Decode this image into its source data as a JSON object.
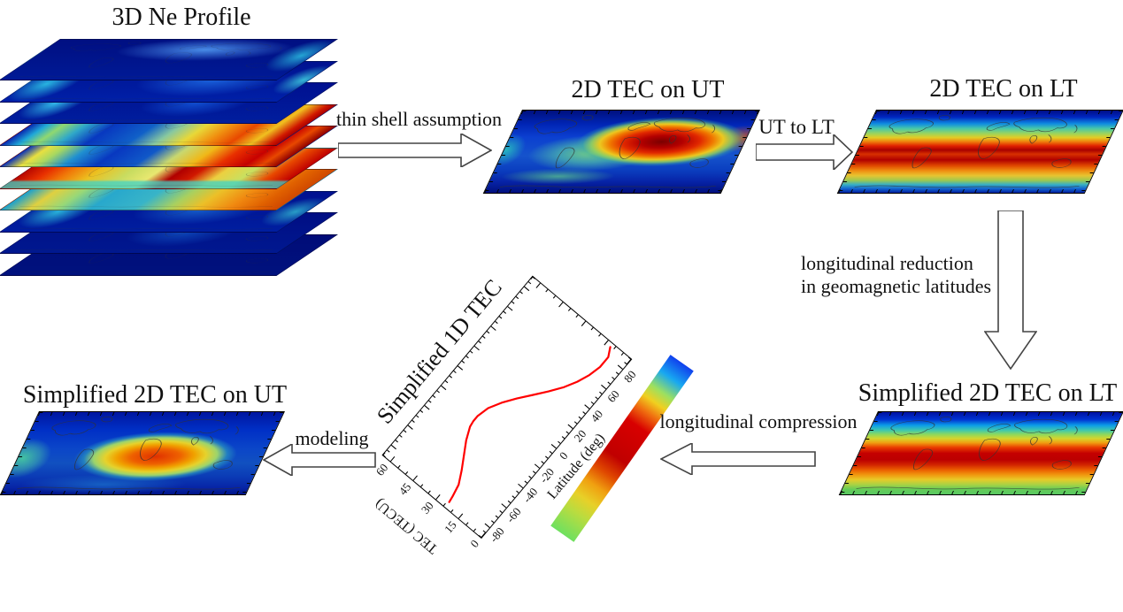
{
  "stack": {
    "title": "3D Ne Profile",
    "layer_count": 10
  },
  "flow": {
    "thin_shell_label": "thin shell assumption",
    "ut_to_lt_label": "UT to LT",
    "reduction_label_line1": "longitudinal reduction",
    "reduction_label_line2": "in geomagnetic latitudes",
    "compression_label": "longitudinal compression",
    "modeling_label": "modeling"
  },
  "maps": {
    "tec_ut_title": "2D TEC on UT",
    "tec_lt_title": "2D TEC on LT",
    "simplified_lt_title": "Simplified 2D TEC  on LT",
    "simplified_ut_title": "Simplified 2D TEC on UT"
  },
  "colors": {
    "curve": "#ff0000",
    "arrow_fill": "#ffffff",
    "arrow_outline": "#444444",
    "jet_scale": [
      "#00008f",
      "#0020ff",
      "#00c0ff",
      "#40e090",
      "#ffff00",
      "#ff8000",
      "#ff0000",
      "#800000"
    ]
  },
  "chart_data": {
    "type": "line",
    "title": "Simplified 1D TEC",
    "xlabel": "Latitude (deg)",
    "ylabel": "TEC (TECU)",
    "xlim": [
      -90,
      90
    ],
    "ylim": [
      0,
      65
    ],
    "xticks": [
      -80,
      -60,
      -40,
      -20,
      0,
      20,
      40,
      60,
      80
    ],
    "yticks": [
      0,
      15,
      30,
      45,
      60
    ],
    "grid": false,
    "rotation_deg": -50,
    "line_color": "#ff0000",
    "series": [
      {
        "name": "1D TEC latitude profile",
        "x": [
          -85,
          -80,
          -70,
          -60,
          -50,
          -40,
          -30,
          -25,
          -20,
          -10,
          0,
          10,
          20,
          30,
          40,
          50,
          60,
          70,
          80,
          87
        ],
        "y": [
          24,
          24.5,
          26,
          29.5,
          33.5,
          37.5,
          40.5,
          41,
          41,
          39.5,
          36,
          31.5,
          26.5,
          21.5,
          17,
          13.5,
          11,
          9.5,
          9.5,
          12
        ]
      }
    ],
    "colorbar_strip": {
      "meaning": "1D TEC profile mapped to jet colors along the latitude axis",
      "colors_top_to_bottom": [
        "#1040ee",
        "#18a8f0",
        "#9ce060",
        "#f0d020",
        "#f07010",
        "#d80000",
        "#c00000",
        "#e04800",
        "#f0a010",
        "#e8d028",
        "#6ee060"
      ]
    }
  }
}
